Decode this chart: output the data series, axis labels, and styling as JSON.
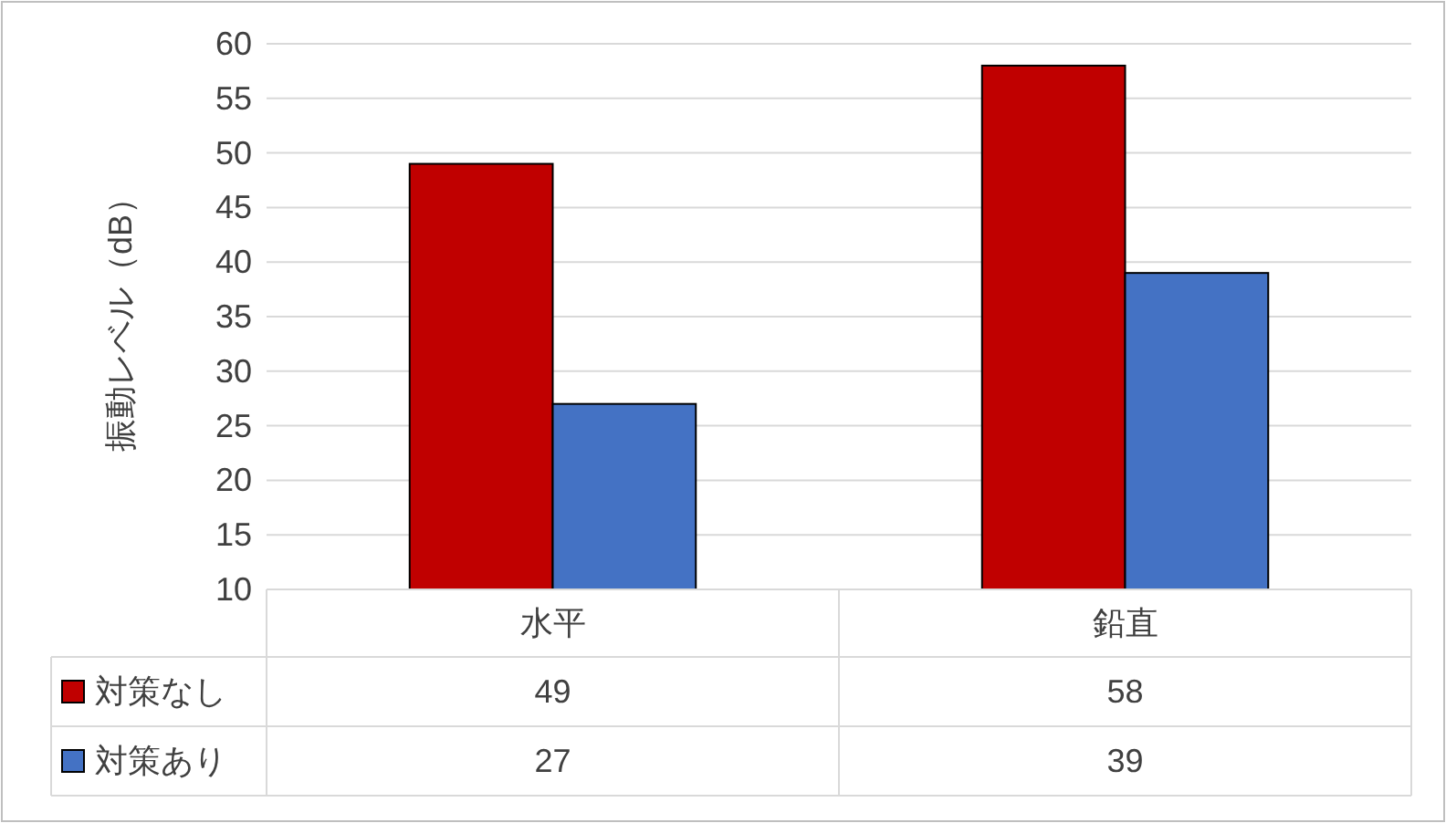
{
  "chart_data": {
    "type": "bar",
    "ylabel": "振動レベル（dB）",
    "categories": [
      "水平",
      "鉛直"
    ],
    "series": [
      {
        "name": "対策なし",
        "color": "#c00000",
        "values": [
          49,
          58
        ]
      },
      {
        "name": "対策あり",
        "color": "#4472c4",
        "values": [
          27,
          39
        ]
      }
    ],
    "ylim": [
      10,
      60
    ],
    "yticks": [
      10,
      15,
      20,
      25,
      30,
      35,
      40,
      45,
      50,
      55,
      60
    ],
    "grid": "y",
    "data_labels": true,
    "legend": "bottom"
  }
}
